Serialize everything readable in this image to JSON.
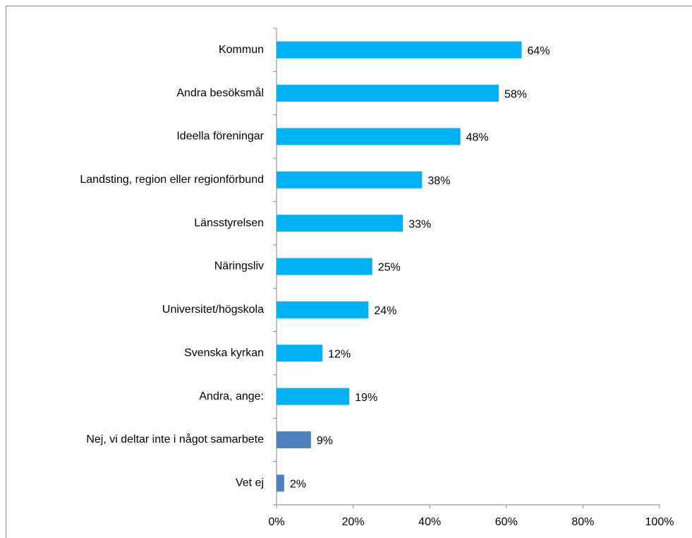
{
  "chart_data": {
    "type": "bar",
    "orientation": "horizontal",
    "categories": [
      "Kommun",
      "Andra besöksmål",
      "Ideella föreningar",
      "Landsting, region eller regionförbund",
      "Länsstyrelsen",
      "Näringsliv",
      "Universitet/högskola",
      "Svenska kyrkan",
      "Andra, ange:",
      "Nej, vi deltar inte i något samarbete",
      "Vet ej"
    ],
    "values": [
      64,
      58,
      48,
      38,
      33,
      25,
      24,
      12,
      19,
      9,
      2
    ],
    "value_labels": [
      "64%",
      "58%",
      "48%",
      "38%",
      "33%",
      "25%",
      "24%",
      "12%",
      "19%",
      "9%",
      "2%"
    ],
    "colors": [
      "#00b0f0",
      "#00b0f0",
      "#00b0f0",
      "#00b0f0",
      "#00b0f0",
      "#00b0f0",
      "#00b0f0",
      "#00b0f0",
      "#00b0f0",
      "#4f81bd",
      "#4f81bd"
    ],
    "xlim": [
      0,
      100
    ],
    "xticks": [
      {
        "value": 0,
        "label": "0%"
      },
      {
        "value": 20,
        "label": "20%"
      },
      {
        "value": 40,
        "label": "40%"
      },
      {
        "value": 60,
        "label": "60%"
      },
      {
        "value": 80,
        "label": "80%"
      },
      {
        "value": 100,
        "label": "100%"
      }
    ]
  }
}
